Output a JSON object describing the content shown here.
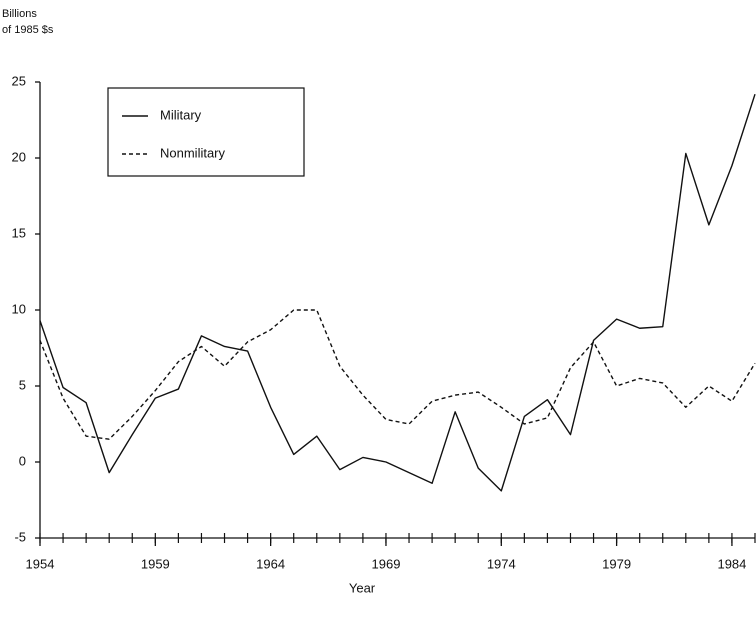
{
  "chart_data": {
    "type": "line",
    "ylabel": [
      "Billions",
      "of 1985 $s"
    ],
    "xlabel": "Year",
    "x": [
      1954,
      1955,
      1956,
      1957,
      1958,
      1959,
      1960,
      1961,
      1962,
      1963,
      1964,
      1965,
      1966,
      1967,
      1968,
      1969,
      1970,
      1971,
      1972,
      1973,
      1974,
      1975,
      1976,
      1977,
      1978,
      1979,
      1980,
      1981,
      1982,
      1983,
      1984,
      1985
    ],
    "series": [
      {
        "name": "Military",
        "color": "#111111",
        "dash": false,
        "values": [
          9.3,
          4.9,
          3.9,
          -0.7,
          1.8,
          4.2,
          4.8,
          8.3,
          7.6,
          7.3,
          3.6,
          0.5,
          1.7,
          -0.5,
          0.3,
          0.0,
          -0.7,
          -1.4,
          3.3,
          -0.4,
          -1.9,
          3.0,
          4.1,
          1.8,
          8.0,
          9.4,
          8.8,
          8.9,
          20.3,
          15.6,
          19.5,
          24.2
        ]
      },
      {
        "name": "Nonmilitary",
        "color": "#111111",
        "dash": true,
        "values": [
          8.0,
          4.2,
          1.7,
          1.5,
          3.0,
          4.7,
          6.6,
          7.6,
          6.3,
          7.9,
          8.7,
          10.0,
          10.0,
          6.3,
          4.4,
          2.8,
          2.5,
          4.0,
          4.4,
          4.6,
          3.6,
          2.5,
          2.9,
          6.2,
          7.9,
          5.0,
          5.5,
          5.2,
          3.6,
          5.0,
          4.0,
          6.5
        ]
      }
    ],
    "xlim": [
      1954,
      1985
    ],
    "xticks": [
      1954,
      1959,
      1964,
      1969,
      1974,
      1979,
      1984
    ],
    "ylim": [
      -5,
      25
    ],
    "yticks": [
      -5,
      0,
      5,
      10,
      15,
      20,
      25
    ],
    "grid": false
  }
}
